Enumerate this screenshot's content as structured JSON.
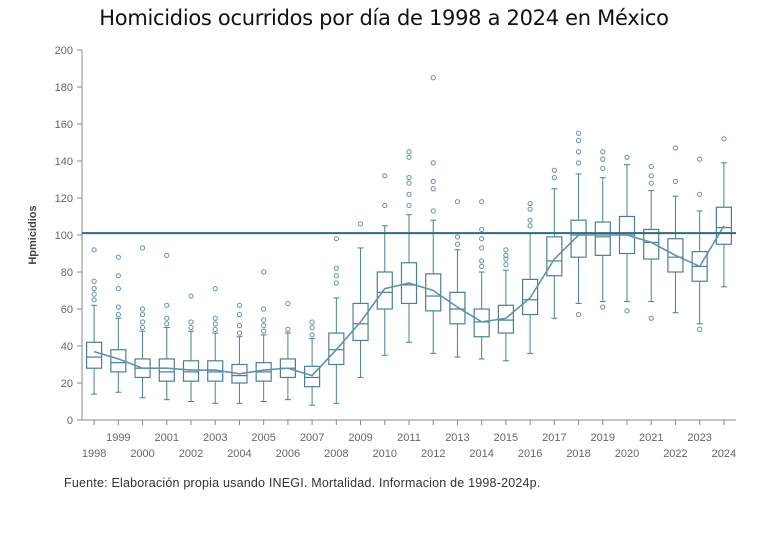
{
  "chart_data": {
    "type": "box",
    "title": "Homicidios ocurridos  por día de 1998 a 2024 en México",
    "ylabel": "Hpmicidios",
    "xlabel": "",
    "ylim": [
      0,
      200
    ],
    "yticks": [
      0,
      20,
      40,
      60,
      80,
      100,
      120,
      140,
      160,
      180,
      200
    ],
    "reference_line": 101,
    "categories": [
      "1998",
      "1999",
      "2000",
      "2001",
      "2002",
      "2003",
      "2004",
      "2005",
      "2006",
      "2007",
      "2008",
      "2009",
      "2010",
      "2011",
      "2012",
      "2013",
      "2014",
      "2015",
      "2016",
      "2017",
      "2018",
      "2019",
      "2020",
      "2021",
      "2022",
      "2023",
      "2024"
    ],
    "series": [
      {
        "name": "box",
        "values": [
          {
            "min": 14,
            "q1": 28,
            "median": 34,
            "q3": 42,
            "max": 62,
            "mean": 37,
            "outliers": [
              65,
              68,
              71,
              75,
              92
            ]
          },
          {
            "min": 15,
            "q1": 26,
            "median": 31,
            "q3": 38,
            "max": 55,
            "mean": 33,
            "outliers": [
              57,
              61,
              71,
              78,
              88
            ]
          },
          {
            "min": 12,
            "q1": 23,
            "median": 28,
            "q3": 33,
            "max": 48,
            "mean": 28,
            "outliers": [
              50,
              53,
              57,
              60,
              93
            ]
          },
          {
            "min": 11,
            "q1": 21,
            "median": 26,
            "q3": 33,
            "max": 50,
            "mean": 28,
            "outliers": [
              52,
              55,
              62,
              89
            ]
          },
          {
            "min": 10,
            "q1": 21,
            "median": 26,
            "q3": 32,
            "max": 48,
            "mean": 27,
            "outliers": [
              50,
              53,
              67
            ]
          },
          {
            "min": 9,
            "q1": 21,
            "median": 26,
            "q3": 32,
            "max": 47,
            "mean": 27,
            "outliers": [
              49,
              52,
              55,
              71
            ]
          },
          {
            "min": 9,
            "q1": 20,
            "median": 24,
            "q3": 30,
            "max": 45,
            "mean": 25,
            "outliers": [
              47,
              51,
              57,
              62
            ]
          },
          {
            "min": 10,
            "q1": 21,
            "median": 26,
            "q3": 31,
            "max": 46,
            "mean": 27,
            "outliers": [
              48,
              51,
              54,
              60,
              80
            ]
          },
          {
            "min": 11,
            "q1": 23,
            "median": 28,
            "q3": 33,
            "max": 47,
            "mean": 28,
            "outliers": [
              49,
              63
            ]
          },
          {
            "min": 8,
            "q1": 18,
            "median": 23,
            "q3": 29,
            "max": 44,
            "mean": 24,
            "outliers": [
              46,
              50,
              53
            ]
          },
          {
            "min": 9,
            "q1": 30,
            "median": 38,
            "q3": 47,
            "max": 66,
            "mean": 38,
            "outliers": [
              74,
              78,
              82,
              98
            ]
          },
          {
            "min": 23,
            "q1": 43,
            "median": 52,
            "q3": 63,
            "max": 93,
            "mean": 53,
            "outliers": [
              106
            ]
          },
          {
            "min": 35,
            "q1": 60,
            "median": 69,
            "q3": 80,
            "max": 105,
            "mean": 71,
            "outliers": [
              116,
              132
            ]
          },
          {
            "min": 42,
            "q1": 63,
            "median": 73,
            "q3": 85,
            "max": 111,
            "mean": 74,
            "outliers": [
              116,
              122,
              128,
              131,
              142,
              145
            ]
          },
          {
            "min": 36,
            "q1": 59,
            "median": 67,
            "q3": 79,
            "max": 108,
            "mean": 70,
            "outliers": [
              113,
              125,
              129,
              139,
              185
            ]
          },
          {
            "min": 34,
            "q1": 52,
            "median": 60,
            "q3": 69,
            "max": 92,
            "mean": 61,
            "outliers": [
              95,
              99,
              118
            ]
          },
          {
            "min": 33,
            "q1": 45,
            "median": 53,
            "q3": 60,
            "max": 80,
            "mean": 53,
            "outliers": [
              83,
              86,
              93,
              98,
              103,
              118
            ]
          },
          {
            "min": 32,
            "q1": 47,
            "median": 54,
            "q3": 62,
            "max": 81,
            "mean": 55,
            "outliers": [
              84,
              87,
              89,
              92
            ]
          },
          {
            "min": 36,
            "q1": 57,
            "median": 65,
            "q3": 76,
            "max": 101,
            "mean": 66,
            "outliers": [
              105,
              108,
              114,
              117
            ]
          },
          {
            "min": 55,
            "q1": 78,
            "median": 86,
            "q3": 99,
            "max": 125,
            "mean": 87,
            "outliers": [
              131,
              135
            ]
          },
          {
            "min": 63,
            "q1": 88,
            "median": 100,
            "q3": 108,
            "max": 133,
            "mean": 100,
            "outliers": [
              57,
              139,
              145,
              151,
              155
            ]
          },
          {
            "min": 64,
            "q1": 89,
            "median": 99,
            "q3": 107,
            "max": 131,
            "mean": 100,
            "outliers": [
              61,
              136,
              141,
              145
            ]
          },
          {
            "min": 64,
            "q1": 90,
            "median": 100,
            "q3": 110,
            "max": 138,
            "mean": 100,
            "outliers": [
              59,
              142
            ]
          },
          {
            "min": 64,
            "q1": 87,
            "median": 96,
            "q3": 103,
            "max": 124,
            "mean": 96,
            "outliers": [
              55,
              128,
              132,
              137
            ]
          },
          {
            "min": 58,
            "q1": 80,
            "median": 88,
            "q3": 98,
            "max": 121,
            "mean": 89,
            "outliers": [
              129,
              147
            ]
          },
          {
            "min": 52,
            "q1": 75,
            "median": 83,
            "q3": 91,
            "max": 113,
            "mean": 83,
            "outliers": [
              49,
              122,
              141
            ]
          },
          {
            "min": 72,
            "q1": 95,
            "median": 104,
            "q3": 115,
            "max": 139,
            "mean": 105,
            "outliers": [
              152
            ]
          }
        ]
      }
    ]
  },
  "footer": {
    "source": "Fuente: Elaboración propia usando INEGI. Mortalidad. Informacion de 1998-2024p."
  },
  "colors": {
    "box": "#4a7f97",
    "mean_line": "#5f93ab",
    "reference": "#2d6a80",
    "axis": "#888888"
  }
}
